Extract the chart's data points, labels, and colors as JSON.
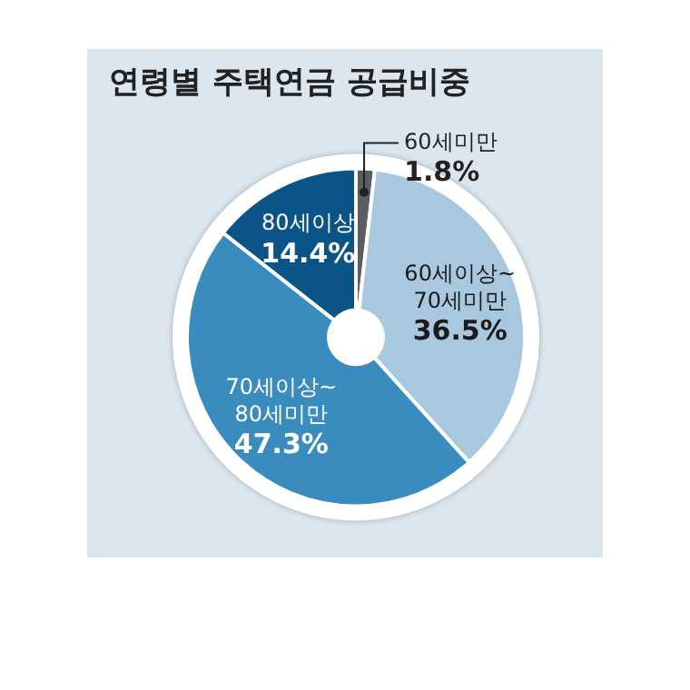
{
  "chart_data": {
    "type": "donut",
    "title": "연령별 주택연금 공급비중",
    "categories": [
      "60세미만",
      "60세이상~70세미만",
      "70세이상~80세미만",
      "80세이상"
    ],
    "values": [
      1.8,
      36.5,
      47.3,
      14.4
    ],
    "colors": [
      "#5a5d62",
      "#a8c8e0",
      "#3a8cbf",
      "#0b5487"
    ],
    "value_labels": [
      "1.8%",
      "36.5%",
      "47.3%",
      "14.4%"
    ],
    "legend": false
  }
}
